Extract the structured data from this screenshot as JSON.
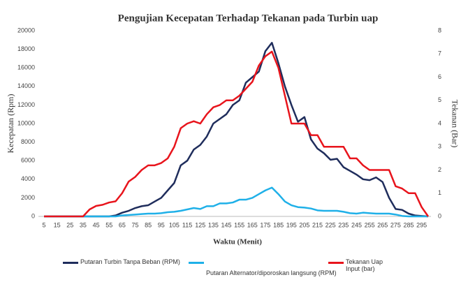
{
  "chart_data": {
    "type": "line",
    "title": "Pengujian Kecepatan Terhadap Tekanan pada Turbin uap",
    "x_label": "Waktu (Menit)",
    "y_label": "Kecepatan (Rpm)",
    "y2_label": "Tekanan  (Bar)",
    "x": [
      5,
      10,
      15,
      20,
      25,
      30,
      35,
      40,
      45,
      50,
      55,
      60,
      65,
      70,
      75,
      80,
      85,
      90,
      95,
      100,
      105,
      110,
      115,
      120,
      125,
      130,
      135,
      140,
      145,
      150,
      155,
      160,
      165,
      170,
      175,
      180,
      185,
      190,
      195,
      200,
      205,
      210,
      215,
      220,
      225,
      230,
      235,
      240,
      245,
      250,
      255,
      260,
      265,
      270,
      275,
      280,
      285,
      290,
      295,
      300
    ],
    "xlim": [
      5,
      300
    ],
    "xticks": [
      5,
      15,
      25,
      35,
      45,
      55,
      65,
      75,
      85,
      95,
      105,
      115,
      125,
      135,
      145,
      155,
      165,
      175,
      185,
      195,
      205,
      215,
      225,
      235,
      245,
      255,
      265,
      275,
      285,
      295
    ],
    "ylim": [
      0,
      20000
    ],
    "yticks": [
      0,
      2000,
      4000,
      6000,
      8000,
      10000,
      12000,
      14000,
      16000,
      18000,
      20000
    ],
    "y2lim": [
      0,
      8
    ],
    "y2ticks": [
      0,
      1,
      2,
      3,
      4,
      5,
      6,
      7,
      8
    ],
    "grid": false,
    "series": [
      {
        "name": "Putaran Turbin Tanpa Beban (RPM)",
        "color": "#1f2d5c",
        "values": [
          0,
          0,
          0,
          0,
          0,
          0,
          0,
          0,
          0,
          0,
          0,
          100,
          400,
          600,
          900,
          1100,
          1200,
          1600,
          2000,
          2800,
          3600,
          5500,
          6000,
          7200,
          7700,
          8600,
          10000,
          10500,
          11000,
          12000,
          12500,
          14400,
          15000,
          15600,
          17800,
          18700,
          16500,
          14000,
          12000,
          10200,
          10700,
          8300,
          7300,
          6800,
          6100,
          6200,
          5300,
          4900,
          4500,
          4000,
          3900,
          4200,
          3700,
          2000,
          800,
          700,
          300,
          100,
          50,
          0
        ]
      },
      {
        "name": "Putaran Alternator/diporoskan langsung (RPM)",
        "color": "#1fb0e8",
        "values": [
          0,
          0,
          0,
          0,
          0,
          0,
          0,
          0,
          0,
          0,
          0,
          0,
          100,
          150,
          200,
          250,
          300,
          300,
          350,
          450,
          500,
          600,
          750,
          900,
          800,
          1100,
          1100,
          1400,
          1400,
          1500,
          1800,
          1800,
          2000,
          2400,
          2800,
          3100,
          2400,
          1600,
          1200,
          1000,
          950,
          850,
          650,
          600,
          600,
          600,
          500,
          350,
          300,
          400,
          350,
          300,
          300,
          300,
          200,
          50,
          0,
          0,
          0,
          0
        ]
      },
      {
        "name": "Tekanan Uap Input (bar)",
        "color": "#e8141c",
        "axis": "y2",
        "values": [
          0,
          0,
          0,
          0,
          0,
          0,
          0,
          0.3,
          0.45,
          0.5,
          0.6,
          0.65,
          1.0,
          1.5,
          1.7,
          2.0,
          2.2,
          2.2,
          2.3,
          2.5,
          3.0,
          3.8,
          4.0,
          4.1,
          4.0,
          4.4,
          4.7,
          4.8,
          5.0,
          5.0,
          5.2,
          5.5,
          5.8,
          6.5,
          6.9,
          7.1,
          6.4,
          5.2,
          4.0,
          4.0,
          4.0,
          3.5,
          3.5,
          3.0,
          3.0,
          3.0,
          3.0,
          2.5,
          2.5,
          2.2,
          2.0,
          2.0,
          2.0,
          2.0,
          1.3,
          1.2,
          1.0,
          1.0,
          0.4,
          0
        ]
      }
    ]
  }
}
